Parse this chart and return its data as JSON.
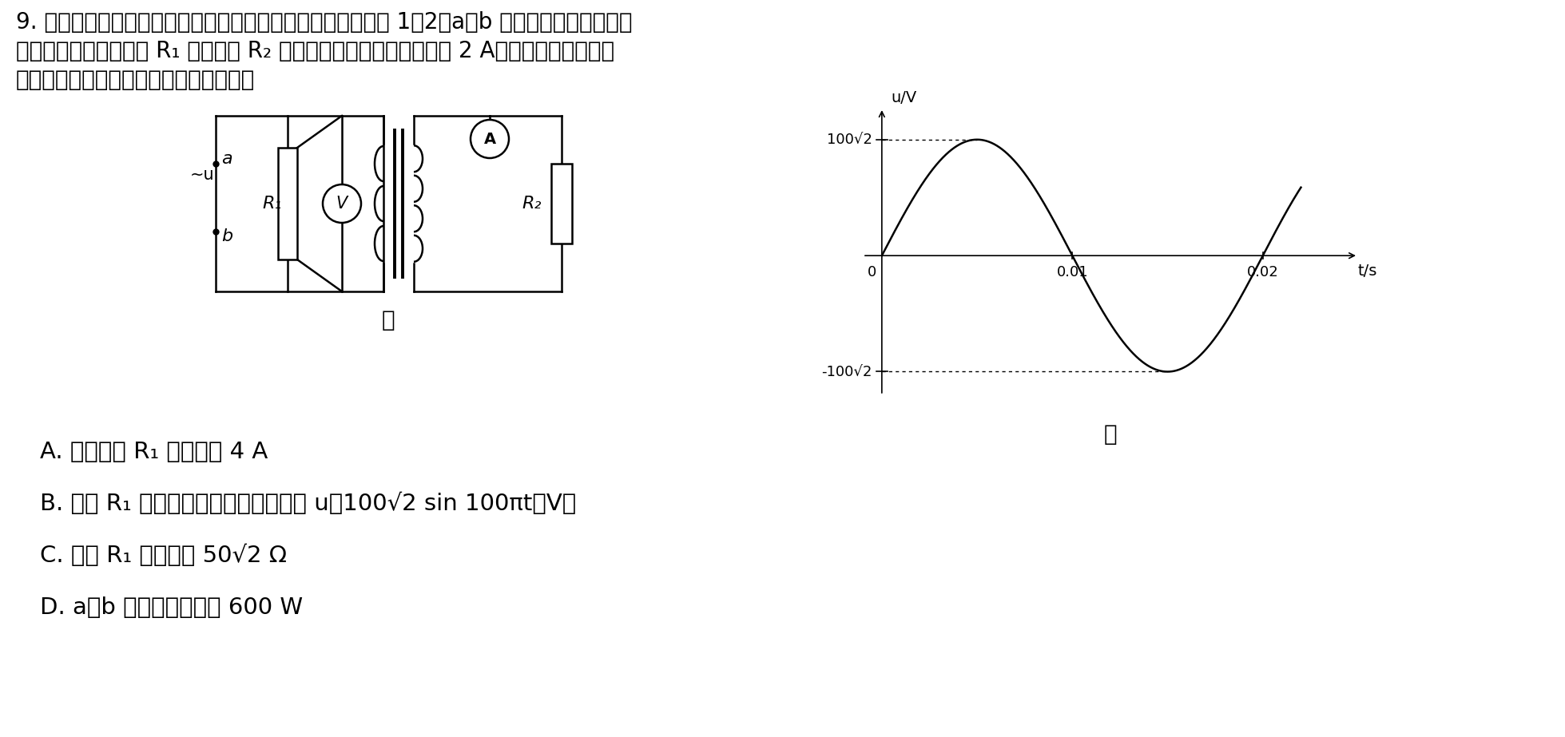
{
  "bg_color": "#ffffff",
  "line1": "9. 如图甲所示的电路中，理想变压器原、副线圈的匹数之比为 1：2，a、b 输入端输入如图乙所示",
  "line2": "的正弦交变电流，电阱 R₁ 的功率是 R₂ 功率的一半，电流表的示数为 2 A，电路中的电流表、",
  "line3": "电压表均为理想电表，下列说法正确的是",
  "graph_jia": "甲",
  "graph_yi": "乙",
  "optA": "A. 通过电阱 R₁ 的电流为 4 A",
  "optB": "B. 电阱 R₁ 两端电压的瞬时値表达式为 u＝100√2 sin 100πt（V）",
  "optC": "C. 电阱 R₁ 的阻値为 50√2 Ω",
  "optD": "D. a、b 端输入的功率为 600 W",
  "sine_peak": 141.421,
  "xlabel": "t/s",
  "ylabel": "u/V",
  "y_pos_label": "100√2",
  "y_neg_label": "-100√2",
  "t1": "0.01",
  "t2": "0.02"
}
